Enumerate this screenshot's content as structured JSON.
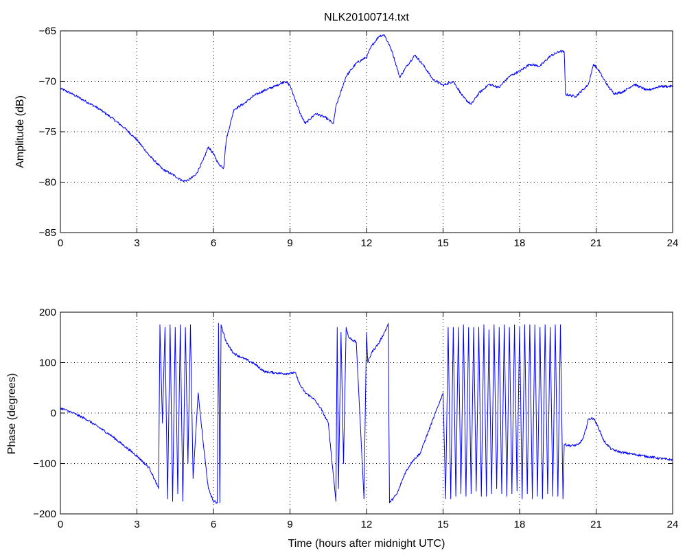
{
  "chart_data": [
    {
      "type": "line",
      "title": "NLK20100714.txt",
      "xlabel": "",
      "ylabel": "Amplitude (dB)",
      "xlim": [
        0,
        24
      ],
      "ylim": [
        -85,
        -65
      ],
      "xticks": [
        0,
        3,
        6,
        9,
        12,
        15,
        18,
        21,
        24
      ],
      "yticks": [
        -85,
        -80,
        -75,
        -70,
        -65
      ],
      "xtick_labels": [
        "0",
        "3",
        "6",
        "9",
        "12",
        "15",
        "18",
        "21",
        "24"
      ],
      "ytick_labels": [
        "−85",
        "−80",
        "−75",
        "−70",
        "−65"
      ],
      "grid": true,
      "series_color": "#0000ff",
      "series": [
        {
          "x": [
            0,
            0.5,
            1,
            1.5,
            2,
            2.5,
            3,
            3.5,
            4,
            4.5,
            4.8,
            5,
            5.3,
            5.6,
            5.8,
            6,
            6.2,
            6.4,
            6.5,
            6.8,
            7.2,
            7.6,
            8,
            8.4,
            8.8,
            9,
            9.2,
            9.4,
            9.6,
            10,
            10.4,
            10.7,
            10.8,
            11.2,
            11.6,
            12,
            12.2,
            12.5,
            12.7,
            13,
            13.3,
            13.6,
            13.9,
            14.2,
            14.6,
            15,
            15.4,
            15.8,
            16.1,
            16.4,
            16.8,
            17.2,
            17.6,
            18,
            18.4,
            18.8,
            19.2,
            19.6,
            19.75,
            19.8,
            20.2,
            20.5,
            20.7,
            20.9,
            21.1,
            21.3,
            21.5,
            21.7,
            22,
            22.5,
            23,
            23.5,
            24
          ],
          "y": [
            -70.7,
            -71.3,
            -72.0,
            -72.7,
            -73.6,
            -74.6,
            -75.8,
            -77.4,
            -78.7,
            -79.4,
            -79.9,
            -79.8,
            -79.3,
            -77.8,
            -76.5,
            -77.2,
            -78.2,
            -78.6,
            -75.8,
            -72.8,
            -72.2,
            -71.4,
            -70.9,
            -70.5,
            -70.0,
            -70.4,
            -71.8,
            -73.2,
            -74.2,
            -73.2,
            -73.6,
            -74.2,
            -72.5,
            -69.5,
            -68.2,
            -67.6,
            -66.5,
            -65.5,
            -65.4,
            -67.0,
            -69.6,
            -68.4,
            -67.4,
            -68.3,
            -69.8,
            -70.4,
            -70.0,
            -71.6,
            -72.3,
            -71.2,
            -70.3,
            -70.6,
            -69.5,
            -69.0,
            -68.3,
            -68.5,
            -67.5,
            -67.0,
            -67.1,
            -71.3,
            -71.5,
            -70.8,
            -70.3,
            -68.3,
            -68.9,
            -69.8,
            -70.6,
            -71.2,
            -71.1,
            -70.3,
            -70.9,
            -70.5,
            -70.5
          ]
        }
      ]
    },
    {
      "type": "line",
      "title": "",
      "xlabel": "Time (hours after midnight UTC)",
      "ylabel": "Phase (degrees)",
      "xlim": [
        0,
        24
      ],
      "ylim": [
        -200,
        200
      ],
      "xticks": [
        0,
        3,
        6,
        9,
        12,
        15,
        18,
        21,
        24
      ],
      "yticks": [
        -200,
        -100,
        0,
        100,
        200
      ],
      "xtick_labels": [
        "0",
        "3",
        "6",
        "9",
        "12",
        "15",
        "18",
        "21",
        "24"
      ],
      "ytick_labels": [
        "−200",
        "−100",
        "0",
        "100",
        "200"
      ],
      "grid": true,
      "series_color": "#0000ff",
      "series": [
        {
          "x": [
            0,
            0.5,
            1,
            1.5,
            2,
            2.5,
            3,
            3.5,
            3.85,
            3.9,
            4.0,
            4.1,
            4.2,
            4.3,
            4.4,
            4.5,
            4.6,
            4.7,
            4.8,
            4.9,
            5.0,
            5.1,
            5.2,
            5.4,
            5.6,
            5.8,
            6.0,
            6.15,
            6.2,
            6.25,
            6.3,
            6.5,
            6.8,
            7.2,
            7.6,
            8.0,
            8.4,
            8.8,
            9.2,
            9.4,
            9.6,
            9.9,
            10.2,
            10.5,
            10.8,
            10.85,
            10.9,
            11.0,
            11.1,
            11.2,
            11.3,
            11.6,
            11.9,
            12.0,
            12.05,
            12.2,
            12.5,
            12.8,
            12.85,
            12.9,
            13.2,
            13.5,
            13.8,
            14.1,
            14.4,
            14.7,
            15.0,
            15.1,
            15.2,
            15.3,
            15.4,
            15.5,
            15.6,
            15.7,
            15.8,
            15.9,
            16.0,
            16.1,
            16.2,
            16.3,
            16.4,
            16.5,
            16.6,
            16.7,
            16.8,
            16.9,
            17.0,
            17.1,
            17.2,
            17.3,
            17.4,
            17.5,
            17.6,
            17.7,
            17.8,
            17.9,
            18.0,
            18.1,
            18.2,
            18.3,
            18.4,
            18.5,
            18.6,
            18.7,
            18.8,
            18.9,
            19.0,
            19.1,
            19.2,
            19.3,
            19.4,
            19.5,
            19.6,
            19.7,
            19.75,
            20.0,
            20.3,
            20.5,
            20.7,
            20.9,
            21.1,
            21.3,
            21.6,
            22.0,
            22.5,
            23.0,
            23.5,
            24.0
          ],
          "y": [
            10,
            0,
            -12,
            -28,
            -45,
            -65,
            -85,
            -110,
            -150,
            175,
            -20,
            170,
            -170,
            175,
            -175,
            170,
            -160,
            175,
            -175,
            170,
            -100,
            175,
            -130,
            40,
            -60,
            -150,
            -175,
            -178,
            178,
            -178,
            175,
            140,
            118,
            108,
            98,
            82,
            80,
            78,
            80,
            55,
            40,
            30,
            10,
            -20,
            -175,
            170,
            -150,
            160,
            -100,
            170,
            150,
            140,
            -170,
            160,
            100,
            120,
            140,
            170,
            178,
            -178,
            -160,
            -120,
            -95,
            -80,
            -40,
            0,
            40,
            -170,
            170,
            -170,
            170,
            -165,
            170,
            -160,
            175,
            -165,
            170,
            -160,
            170,
            -155,
            170,
            -165,
            175,
            -165,
            165,
            -160,
            175,
            -150,
            170,
            -160,
            175,
            -165,
            170,
            -160,
            175,
            -155,
            170,
            -170,
            175,
            -160,
            175,
            -170,
            175,
            -165,
            170,
            -170,
            175,
            -160,
            170,
            -165,
            175,
            -165,
            175,
            -170,
            -62,
            -65,
            -63,
            -50,
            -12,
            -10,
            -30,
            -55,
            -72,
            -78,
            -82,
            -86,
            -90,
            -93
          ]
        }
      ]
    }
  ]
}
